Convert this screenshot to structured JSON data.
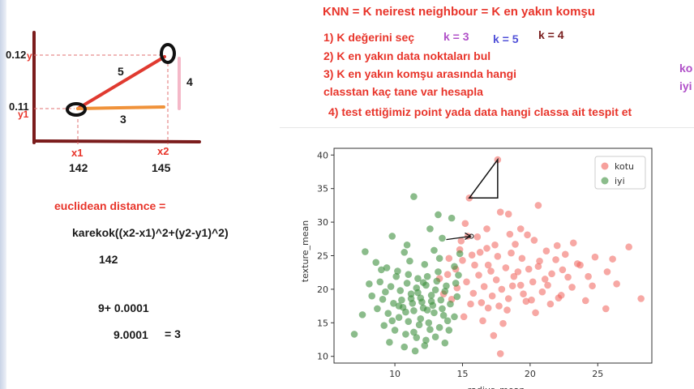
{
  "header": {
    "title": "KNN = K neirest neighbour  = K en yakın komşu"
  },
  "steps": {
    "s1": "1) K  değerini seç",
    "k3": "k = 3",
    "k5": "k = 5",
    "k4": "k = 4",
    "s2": "2) K en yakın data noktaları bul",
    "s3a": "3) K en yakın komşu arasında hangi",
    "s3b": "classtan kaç tane var hesapla",
    "s4": "4) test ettiğimiz point yada data hangi classa ait tespit et",
    "edge1": "ko",
    "edge2": "iyi"
  },
  "sketch": {
    "y2_label": "0.12",
    "y2_mark": "y",
    "y1_label": "0.11",
    "y1_mark": "y1",
    "hyp": "5",
    "vert": "4",
    "horiz": "3",
    "x1": "x1",
    "x1_val": "142",
    "x2": "x2",
    "x2_val": "145"
  },
  "formula": {
    "title": "euclidean distance =",
    "expr": "karekok((x2-x1)^2+(y2-y1)^2)",
    "n142": "142",
    "sum": "9+ 0.0001",
    "res_a": "9.0001",
    "res_b": "= 3"
  },
  "chart_data": {
    "type": "scatter",
    "xlabel": "radius_mean",
    "ylabel": "texture_mean",
    "xlim": [
      5.5,
      29
    ],
    "ylim": [
      9,
      41
    ],
    "xticks": [
      10,
      15,
      20,
      25
    ],
    "yticks": [
      10,
      15,
      20,
      25,
      30,
      35,
      40
    ],
    "legend_position": "top-right",
    "series": [
      {
        "name": "kotu",
        "color": "#f0605a",
        "points": [
          [
            17.6,
            39.3
          ],
          [
            15.5,
            33.6
          ],
          [
            17.8,
            31.5
          ],
          [
            20.6,
            32.5
          ],
          [
            19.8,
            28.1
          ],
          [
            22.0,
            26.5
          ],
          [
            23.2,
            26.9
          ],
          [
            27.3,
            26.3
          ],
          [
            15.2,
            29.8
          ],
          [
            16.8,
            29.0
          ],
          [
            18.5,
            28.2
          ],
          [
            20.3,
            27.3
          ],
          [
            14.9,
            27.2
          ],
          [
            16.1,
            27.8
          ],
          [
            17.4,
            26.6
          ],
          [
            18.9,
            26.7
          ],
          [
            21.2,
            25.7
          ],
          [
            22.6,
            25.2
          ],
          [
            24.8,
            24.8
          ],
          [
            26.1,
            24.5
          ],
          [
            16.3,
            25.5
          ],
          [
            17.6,
            24.9
          ],
          [
            19.4,
            24.6
          ],
          [
            20.7,
            24.2
          ],
          [
            23.5,
            23.8
          ],
          [
            25.7,
            22.6
          ],
          [
            16.9,
            23.6
          ],
          [
            18.2,
            23.2
          ],
          [
            19.9,
            23.0
          ],
          [
            21.6,
            22.3
          ],
          [
            22.8,
            21.8
          ],
          [
            24.3,
            21.9
          ],
          [
            16.2,
            22.1
          ],
          [
            17.5,
            21.4
          ],
          [
            18.8,
            21.9
          ],
          [
            20.2,
            21.1
          ],
          [
            21.3,
            20.6
          ],
          [
            23.1,
            20.3
          ],
          [
            26.4,
            20.8
          ],
          [
            28.2,
            18.6
          ],
          [
            15.3,
            21.1
          ],
          [
            16.6,
            20.4
          ],
          [
            17.9,
            20.0
          ],
          [
            19.3,
            20.6
          ],
          [
            20.9,
            19.6
          ],
          [
            22.3,
            19.1
          ],
          [
            24.1,
            18.3
          ],
          [
            25.6,
            17.1
          ],
          [
            14.6,
            20.2
          ],
          [
            15.8,
            19.4
          ],
          [
            17.2,
            19.0
          ],
          [
            18.4,
            18.6
          ],
          [
            19.7,
            18.2
          ],
          [
            21.5,
            17.8
          ],
          [
            14.2,
            18.5
          ],
          [
            15.6,
            17.8
          ],
          [
            16.9,
            17.2
          ],
          [
            18.3,
            16.9
          ],
          [
            20.4,
            16.5
          ],
          [
            15.1,
            15.9
          ],
          [
            16.5,
            15.3
          ],
          [
            18.0,
            14.9
          ],
          [
            17.3,
            13.1
          ],
          [
            17.8,
            10.4
          ],
          [
            13.9,
            22.2
          ],
          [
            13.6,
            19.3
          ],
          [
            15.9,
            23.6
          ],
          [
            16.8,
            26.1
          ],
          [
            18.6,
            25.4
          ],
          [
            19.1,
            22.6
          ],
          [
            20.6,
            23.4
          ],
          [
            21.9,
            24.4
          ],
          [
            14.5,
            23.0
          ],
          [
            15.0,
            24.3
          ],
          [
            15.7,
            25.1
          ],
          [
            17.1,
            22.7
          ],
          [
            18.7,
            20.5
          ],
          [
            19.5,
            19.3
          ],
          [
            20.1,
            18.4
          ],
          [
            22.4,
            22.9
          ],
          [
            23.7,
            23.6
          ],
          [
            24.6,
            20.5
          ],
          [
            13.3,
            21.6
          ],
          [
            14.0,
            24.6
          ],
          [
            16.4,
            18.0
          ],
          [
            17.7,
            17.5
          ],
          [
            21.1,
            21.5
          ],
          [
            22.1,
            18.7
          ],
          [
            15.4,
            27.9
          ],
          [
            19.3,
            29.0
          ],
          [
            18.4,
            31.2
          ],
          [
            14.8,
            25.9
          ]
        ]
      },
      {
        "name": "iyi",
        "color": "#3d8f3d",
        "points": [
          [
            11.4,
            33.8
          ],
          [
            13.2,
            31.1
          ],
          [
            9.8,
            27.9
          ],
          [
            12.6,
            29.0
          ],
          [
            14.2,
            30.6
          ],
          [
            10.9,
            26.6
          ],
          [
            13.5,
            27.6
          ],
          [
            14.8,
            25.3
          ],
          [
            7.8,
            25.6
          ],
          [
            8.6,
            24.0
          ],
          [
            9.4,
            23.2
          ],
          [
            10.2,
            22.7
          ],
          [
            11.0,
            22.2
          ],
          [
            11.7,
            21.6
          ],
          [
            12.4,
            21.9
          ],
          [
            13.1,
            21.2
          ],
          [
            13.8,
            20.5
          ],
          [
            14.5,
            20.9
          ],
          [
            8.9,
            21.1
          ],
          [
            9.7,
            20.4
          ],
          [
            10.4,
            19.8
          ],
          [
            11.2,
            19.3
          ],
          [
            11.9,
            18.7
          ],
          [
            12.7,
            19.1
          ],
          [
            13.4,
            18.4
          ],
          [
            14.1,
            17.8
          ],
          [
            8.3,
            19.0
          ],
          [
            9.1,
            18.5
          ],
          [
            9.9,
            17.9
          ],
          [
            10.6,
            17.3
          ],
          [
            11.4,
            16.8
          ],
          [
            12.1,
            17.2
          ],
          [
            12.9,
            16.5
          ],
          [
            13.6,
            16.1
          ],
          [
            14.4,
            15.9
          ],
          [
            8.7,
            17.1
          ],
          [
            9.5,
            16.4
          ],
          [
            10.3,
            15.8
          ],
          [
            11.0,
            15.2
          ],
          [
            11.8,
            14.7
          ],
          [
            12.5,
            15.0
          ],
          [
            13.3,
            14.3
          ],
          [
            14.0,
            13.9
          ],
          [
            9.2,
            14.6
          ],
          [
            10.0,
            13.9
          ],
          [
            10.8,
            13.3
          ],
          [
            11.6,
            12.8
          ],
          [
            12.3,
            12.4
          ],
          [
            13.0,
            12.9
          ],
          [
            7.0,
            13.3
          ],
          [
            9.6,
            12.1
          ],
          [
            10.7,
            11.4
          ],
          [
            11.5,
            10.8
          ],
          [
            12.2,
            11.6
          ],
          [
            13.7,
            12.0
          ],
          [
            10.1,
            21.9
          ],
          [
            10.9,
            20.9
          ],
          [
            11.6,
            20.2
          ],
          [
            12.3,
            20.6
          ],
          [
            13.0,
            19.9
          ],
          [
            10.5,
            18.4
          ],
          [
            11.3,
            17.9
          ],
          [
            12.0,
            18.1
          ],
          [
            12.8,
            17.6
          ],
          [
            13.5,
            17.1
          ],
          [
            11.1,
            24.2
          ],
          [
            12.2,
            23.7
          ],
          [
            13.3,
            24.6
          ],
          [
            14.4,
            23.4
          ],
          [
            9.0,
            22.9
          ],
          [
            10.7,
            25.5
          ],
          [
            12.9,
            25.8
          ],
          [
            8.1,
            20.8
          ],
          [
            7.6,
            16.2
          ],
          [
            9.3,
            19.6
          ],
          [
            10.8,
            16.6
          ],
          [
            11.9,
            15.6
          ],
          [
            12.6,
            14.0
          ],
          [
            13.9,
            15.3
          ],
          [
            14.6,
            18.9
          ],
          [
            11.7,
            19.5
          ],
          [
            12.4,
            16.9
          ],
          [
            13.2,
            22.6
          ],
          [
            14.7,
            22.1
          ],
          [
            10.3,
            17.5
          ],
          [
            11.4,
            13.6
          ],
          [
            12.1,
            21.0
          ],
          [
            9.8,
            15.3
          ],
          [
            13.7,
            19.7
          ],
          [
            12.7,
            18.2
          ],
          [
            11.2,
            18.6
          ]
        ]
      }
    ],
    "annotations": {
      "triangle": [
        [
          15.5,
          33.6
        ],
        [
          17.6,
          39.3
        ],
        [
          17.6,
          33.6
        ]
      ],
      "arrow": [
        [
          13.8,
          27.4
        ],
        [
          15.6,
          27.9
        ]
      ]
    }
  }
}
